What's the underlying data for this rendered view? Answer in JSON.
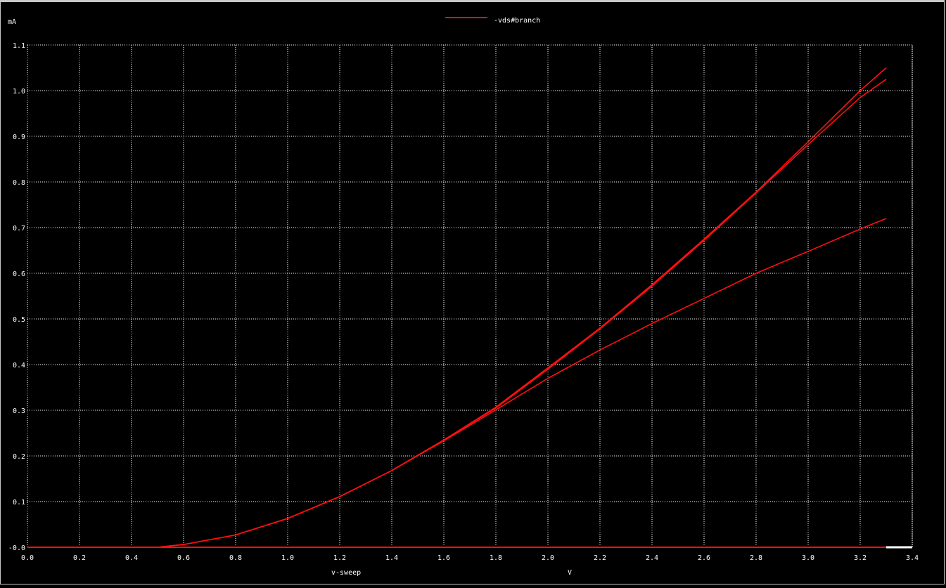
{
  "chart_data": {
    "type": "line",
    "title": "",
    "xlabel": "V",
    "ylabel": "mA",
    "xlabel_left": "v-sweep",
    "legend": {
      "position": "top-center",
      "entries": [
        "-vds#branch"
      ]
    },
    "xlim": [
      0.0,
      3.4
    ],
    "ylim": [
      -0.0,
      1.1
    ],
    "grid": true,
    "x_ticks": [
      "0.0",
      "0.2",
      "0.4",
      "0.6",
      "0.8",
      "1.0",
      "1.2",
      "1.4",
      "1.6",
      "1.8",
      "2.0",
      "2.2",
      "2.4",
      "2.6",
      "2.8",
      "3.0",
      "3.2",
      "3.4"
    ],
    "y_ticks": [
      "-0.0",
      "0.1",
      "0.2",
      "0.3",
      "0.4",
      "0.5",
      "0.6",
      "0.7",
      "0.8",
      "0.9",
      "1.0",
      "1.1"
    ],
    "colors": {
      "background": "#000000",
      "grid": "#ffffff",
      "series": "#ff1010"
    },
    "series": [
      {
        "name": "-vds#branch",
        "x": [
          0.0,
          0.4,
          0.5,
          0.6,
          0.8,
          1.0,
          1.2,
          1.4,
          1.6,
          1.8,
          2.0,
          2.2,
          2.4,
          2.6,
          2.8,
          3.0,
          3.2,
          3.3
        ],
        "values": [
          0.0,
          0.0,
          0.0,
          0.006,
          0.027,
          0.063,
          0.111,
          0.168,
          0.235,
          0.307,
          0.393,
          0.48,
          0.575,
          0.675,
          0.778,
          0.888,
          1.0,
          1.05
        ]
      },
      {
        "name": "",
        "x": [
          0.0,
          0.4,
          0.5,
          0.6,
          0.8,
          1.0,
          1.2,
          1.4,
          1.6,
          1.8,
          2.0,
          2.2,
          2.4,
          2.6,
          2.8,
          3.0,
          3.2,
          3.3
        ],
        "values": [
          0.0,
          0.0,
          0.0,
          0.006,
          0.027,
          0.063,
          0.111,
          0.168,
          0.235,
          0.305,
          0.39,
          0.478,
          0.572,
          0.672,
          0.776,
          0.882,
          0.985,
          1.025
        ]
      },
      {
        "name": "",
        "x": [
          0.0,
          0.4,
          0.5,
          0.6,
          0.8,
          1.0,
          1.2,
          1.4,
          1.6,
          1.8,
          2.0,
          2.2,
          2.4,
          2.6,
          2.8,
          3.0,
          3.2,
          3.3
        ],
        "values": [
          0.0,
          0.0,
          0.0,
          0.006,
          0.027,
          0.063,
          0.111,
          0.168,
          0.233,
          0.301,
          0.37,
          0.432,
          0.49,
          0.545,
          0.6,
          0.648,
          0.697,
          0.72
        ]
      },
      {
        "name": "",
        "x": [
          0.0,
          3.3
        ],
        "values": [
          0.0,
          0.0
        ]
      }
    ]
  }
}
